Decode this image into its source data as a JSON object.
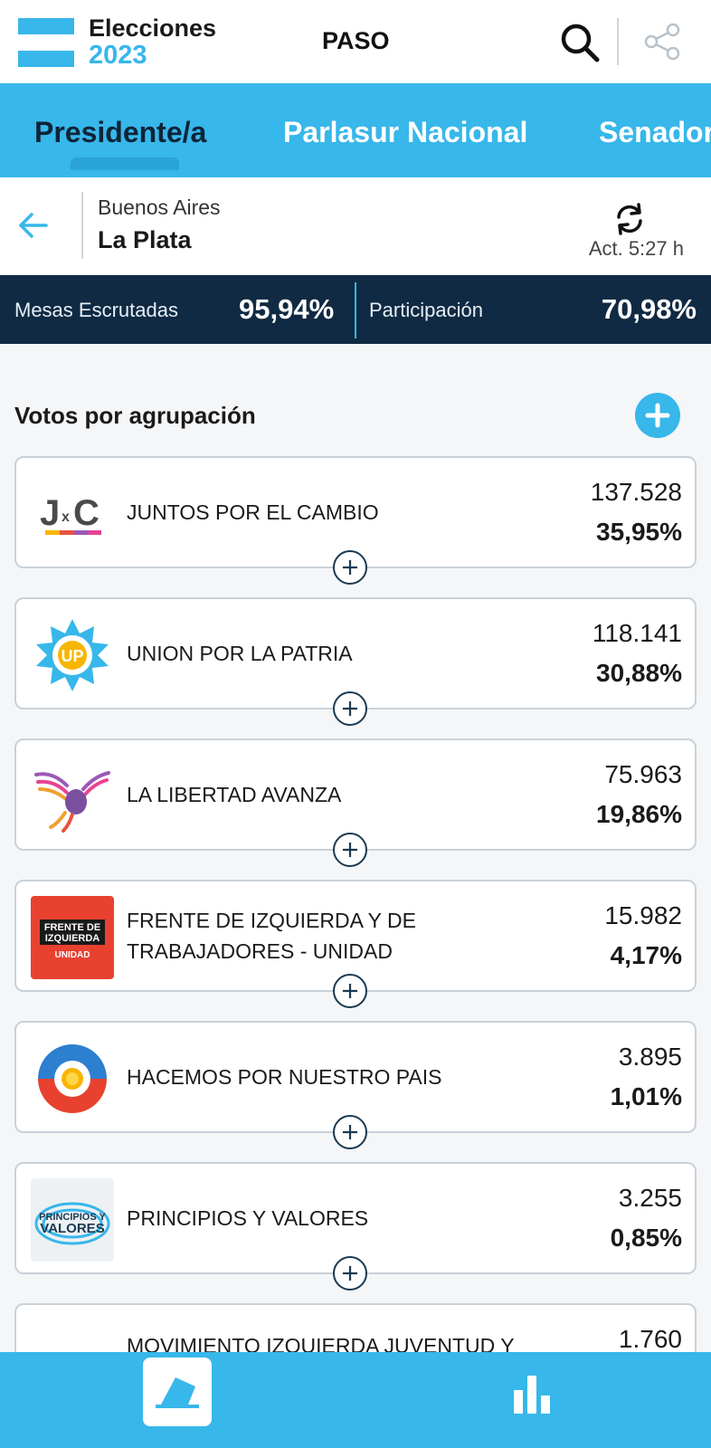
{
  "header": {
    "logo_title": "Elecciones",
    "logo_year": "2023",
    "election_type": "PASO",
    "accent_color": "#37b7ea",
    "dark_color": "#102a43"
  },
  "tabs": [
    {
      "label": "Presidente/a",
      "active": true
    },
    {
      "label": "Parlasur Nacional",
      "active": false
    },
    {
      "label": "Senador",
      "active": false
    }
  ],
  "location": {
    "province": "Buenos Aires",
    "city": "La Plata",
    "updated": "Act. 5:27 h"
  },
  "stats": {
    "mesas_label": "Mesas Escrutadas",
    "mesas_value": "95,94%",
    "participacion_label": "Participación",
    "participacion_value": "70,98%"
  },
  "section": {
    "title": "Votos por agrupación"
  },
  "parties": [
    {
      "name": "JUNTOS POR EL CAMBIO",
      "votes": "137.528",
      "percent": "35,95%",
      "logo": "jxc-logo"
    },
    {
      "name": "UNION POR LA PATRIA",
      "votes": "118.141",
      "percent": "30,88%",
      "logo": "up-logo",
      "logo_text": "UP"
    },
    {
      "name": "LA LIBERTAD AVANZA",
      "votes": "75.963",
      "percent": "19,86%",
      "logo": "lla-eagle-logo"
    },
    {
      "name": "FRENTE DE IZQUIERDA Y DE TRABAJADORES - UNIDAD",
      "votes": "15.982",
      "percent": "4,17%",
      "logo": "fit-logo",
      "logo_text_1": "FRENTE DE",
      "logo_text_2": "IZQUIERDA",
      "logo_text_3": "UNIDAD"
    },
    {
      "name": "HACEMOS POR NUESTRO PAIS",
      "votes": "3.895",
      "percent": "1,01%",
      "logo": "hacemos-logo"
    },
    {
      "name": "PRINCIPIOS Y VALORES",
      "votes": "3.255",
      "percent": "0,85%",
      "logo": "pyv-logo",
      "logo_text_1": "PRINCIPIOS Y",
      "logo_text_2": "VALORES"
    },
    {
      "name": "MOVIMIENTO IZQUIERDA JUVENTUD Y",
      "votes": "1.760",
      "percent": "",
      "logo": "mijd-logo"
    }
  ]
}
